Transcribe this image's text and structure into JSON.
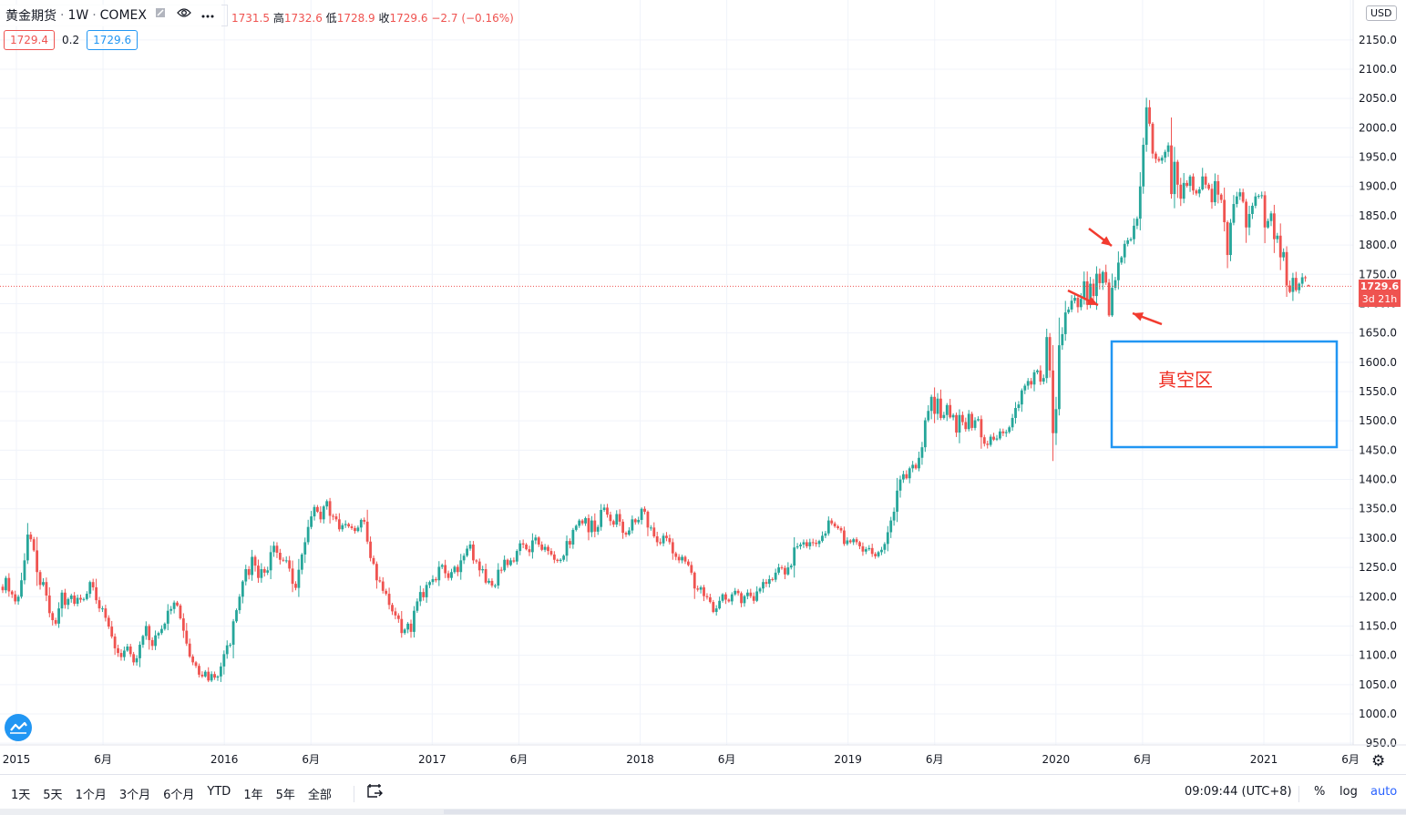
{
  "header": {
    "symbol": "黄金期货",
    "timeframe": "1W",
    "exchange": "COMEX",
    "separator": "·",
    "eye_icon": "eye-icon",
    "more_icon": "more-dots-icon",
    "collapse_icon": "collapse-icon"
  },
  "ohlc": {
    "open_value": "1731.5",
    "high_label": "高",
    "high_value": "1732.6",
    "low_label": "低",
    "low_value": "1728.9",
    "close_label": "收",
    "close_value": "1729.6",
    "change": "−2.7 (−0.16%)"
  },
  "quote": {
    "bid": "1729.4",
    "spread": "0.2",
    "ask": "1729.6"
  },
  "currency": "USD",
  "last_price_tag": {
    "price": "1729.6",
    "countdown": "3d 21h"
  },
  "annotation": {
    "text": "真空区",
    "color": "#ef2f24",
    "box_color": "#2196f3"
  },
  "colors": {
    "up": "#26a69a",
    "down": "#ef5350",
    "grid": "#f0f3fa",
    "text": "#131722",
    "accent": "#2962ff"
  },
  "bottom_bar": {
    "ranges": [
      "1天",
      "5天",
      "1个月",
      "3个月",
      "6个月",
      "YTD",
      "1年",
      "5年",
      "全部"
    ],
    "goto_icon": "calendar-goto-icon",
    "clock": "09:09:44 (UTC+8)",
    "percent": "%",
    "log": "log",
    "auto": "auto"
  },
  "settings_icon": "gear-icon",
  "logo_icon": "tradingview-logo-icon",
  "chart_data": {
    "type": "candlestick",
    "title": "黄金期货 · 1W · COMEX",
    "timeframe": "weekly",
    "y_unit": "USD",
    "ylim": [
      950,
      2200
    ],
    "y_ticks": [
      "950.0",
      "1000.0",
      "1050.0",
      "1100.0",
      "1150.0",
      "1200.0",
      "1250.0",
      "1300.0",
      "1350.0",
      "1400.0",
      "1450.0",
      "1500.0",
      "1550.0",
      "1600.0",
      "1650.0",
      "1700.0",
      "1750.0",
      "1800.0",
      "1850.0",
      "1900.0",
      "1950.0",
      "2000.0",
      "2050.0",
      "2100.0",
      "2150.0"
    ],
    "x_ticks": [
      "2015",
      "6月",
      "2016",
      "6月",
      "2017",
      "6月",
      "2018",
      "6月",
      "2019",
      "6月",
      "2020",
      "6月",
      "2021",
      "6月"
    ],
    "x_start": "2015-01",
    "x_end": "2021-06",
    "grid": true,
    "last_price": 1729.6,
    "ohlc_last": {
      "open": 1731.5,
      "high": 1732.6,
      "low": 1728.9,
      "close": 1729.6,
      "change": -2.7,
      "change_pct": -0.16
    },
    "closes": [
      1211,
      1232,
      1209,
      1204,
      1192,
      1200,
      1228,
      1262,
      1306,
      1298,
      1279,
      1242,
      1220,
      1225,
      1202,
      1172,
      1160,
      1154,
      1180,
      1207,
      1186,
      1196,
      1202,
      1188,
      1198,
      1195,
      1196,
      1205,
      1225,
      1216,
      1194,
      1180,
      1180,
      1164,
      1149,
      1132,
      1112,
      1104,
      1097,
      1108,
      1115,
      1102,
      1088,
      1095,
      1118,
      1133,
      1150,
      1126,
      1116,
      1134,
      1138,
      1145,
      1154,
      1176,
      1179,
      1190,
      1185,
      1163,
      1142,
      1120,
      1098,
      1088,
      1082,
      1067,
      1064,
      1072,
      1057,
      1068,
      1062,
      1064,
      1081,
      1102,
      1117,
      1118,
      1158,
      1177,
      1200,
      1226,
      1247,
      1237,
      1268,
      1253,
      1232,
      1247,
      1241,
      1245,
      1276,
      1287,
      1275,
      1263,
      1262,
      1262,
      1248,
      1222,
      1215,
      1246,
      1272,
      1293,
      1319,
      1337,
      1353,
      1345,
      1332,
      1354,
      1363,
      1338,
      1337,
      1332,
      1315,
      1322,
      1324,
      1320,
      1317,
      1312,
      1318,
      1331,
      1328,
      1294,
      1266,
      1256,
      1228,
      1226,
      1210,
      1205,
      1186,
      1175,
      1168,
      1162,
      1138,
      1144,
      1154,
      1140,
      1176,
      1192,
      1208,
      1199,
      1220,
      1225,
      1230,
      1228,
      1251,
      1254,
      1240,
      1232,
      1242,
      1251,
      1242,
      1262,
      1270,
      1282,
      1289,
      1262,
      1260,
      1245,
      1247,
      1224,
      1227,
      1219,
      1219,
      1246,
      1245,
      1263,
      1254,
      1262,
      1260,
      1278,
      1291,
      1289,
      1281,
      1276,
      1296,
      1301,
      1289,
      1280,
      1285,
      1278,
      1272,
      1263,
      1261,
      1263,
      1270,
      1295,
      1289,
      1314,
      1321,
      1330,
      1325,
      1334,
      1310,
      1330,
      1311,
      1319,
      1348,
      1352,
      1340,
      1329,
      1323,
      1341,
      1328,
      1309,
      1306,
      1313,
      1332,
      1327,
      1331,
      1350,
      1345,
      1318,
      1318,
      1303,
      1293,
      1291,
      1304,
      1300,
      1293,
      1274,
      1268,
      1262,
      1268,
      1260,
      1254,
      1241,
      1214,
      1212,
      1216,
      1201,
      1199,
      1191,
      1174,
      1180,
      1193,
      1204,
      1195,
      1192,
      1204,
      1210,
      1206,
      1189,
      1201,
      1207,
      1201,
      1193,
      1209,
      1214,
      1225,
      1222,
      1230,
      1229,
      1241,
      1250,
      1249,
      1238,
      1250,
      1253,
      1284,
      1286,
      1289,
      1293,
      1286,
      1293,
      1292,
      1290,
      1295,
      1304,
      1308,
      1330,
      1325,
      1320,
      1317,
      1313,
      1290,
      1296,
      1293,
      1298,
      1293,
      1286,
      1277,
      1281,
      1283,
      1273,
      1269,
      1276,
      1280,
      1290,
      1310,
      1330,
      1345,
      1381,
      1400,
      1409,
      1402,
      1419,
      1425,
      1419,
      1437,
      1455,
      1501,
      1517,
      1541,
      1512,
      1538,
      1505,
      1510,
      1527,
      1506,
      1510,
      1480,
      1510,
      1498,
      1486,
      1512,
      1488,
      1501,
      1503,
      1472,
      1461,
      1459,
      1473,
      1468,
      1470,
      1482,
      1479,
      1481,
      1489,
      1505,
      1522,
      1528,
      1552,
      1560,
      1568,
      1562,
      1583,
      1586,
      1567,
      1573,
      1643,
      1586,
      1479,
      1520,
      1629,
      1648,
      1685,
      1690,
      1705,
      1710,
      1694,
      1708,
      1738,
      1698,
      1734,
      1713,
      1751,
      1735,
      1754,
      1736,
      1680,
      1727,
      1740,
      1770,
      1779,
      1802,
      1808,
      1810,
      1833,
      1845,
      1900,
      1971,
      2035,
      2007,
      1956,
      1947,
      1944,
      1949,
      1959,
      1970,
      1887,
      1942,
      1903,
      1879,
      1906,
      1901,
      1917,
      1893,
      1888,
      1895,
      1917,
      1903,
      1896,
      1873,
      1909,
      1886,
      1877,
      1839,
      1783,
      1838,
      1870,
      1883,
      1890,
      1874,
      1830,
      1853,
      1867,
      1883,
      1884,
      1885,
      1830,
      1841,
      1854,
      1810,
      1816,
      1779,
      1788,
      1731,
      1720,
      1744,
      1723,
      1734,
      1745,
      1744,
      1730
    ]
  }
}
